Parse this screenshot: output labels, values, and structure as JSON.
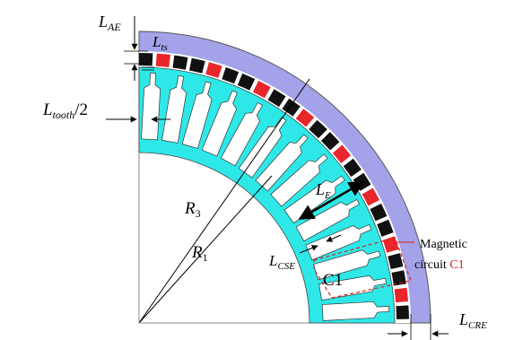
{
  "labels": {
    "l_ae": {
      "main": "L",
      "sub": "AE"
    },
    "l_ts": {
      "main": "L",
      "sub": "ts"
    },
    "l_tooth": {
      "main": "L",
      "sub": "tooth",
      "suffix": "/2"
    },
    "r3": {
      "main": "R",
      "sub": "3"
    },
    "r1": {
      "main": "R",
      "sub": "1"
    },
    "l_e": {
      "main": "L",
      "sub": "E"
    },
    "l_cse": {
      "main": "L",
      "sub": "CSE"
    },
    "l_cre": {
      "main": "L",
      "sub": "CRE"
    },
    "c1": "C1",
    "magnetic_circuit": {
      "line1": "Magnetic",
      "line2": "circuit",
      "tag": "C1"
    }
  },
  "colors": {
    "yoke": "#a4a2e8",
    "core": "#2ee8e8",
    "magnet_red": "#e8262c",
    "magnet_black": "#111111",
    "annotation_red": "#e01a1a",
    "outline": "#333333"
  }
}
